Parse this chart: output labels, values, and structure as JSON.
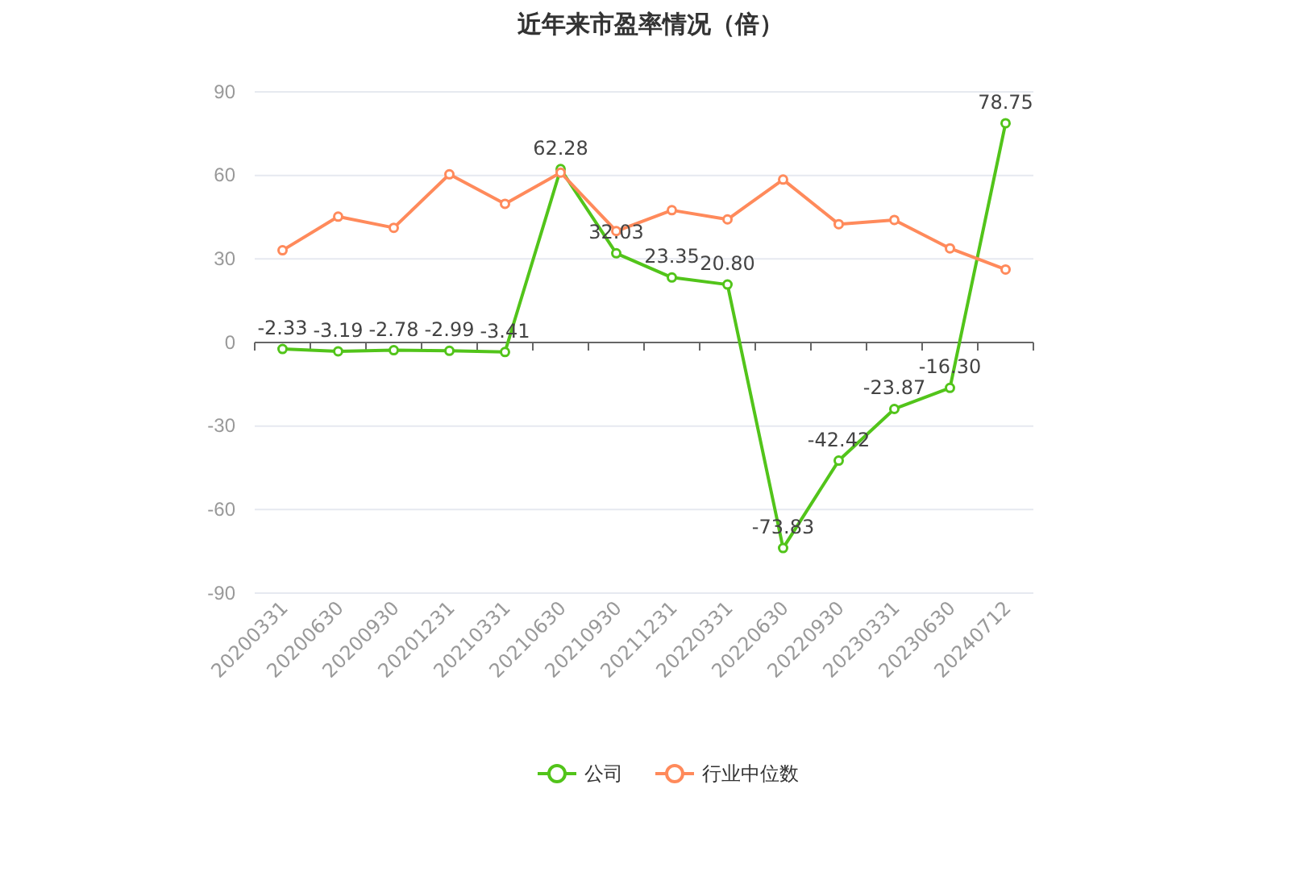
{
  "chart_data": {
    "type": "line",
    "title": "近年来市盈率情况（倍）",
    "categories": [
      "20200331",
      "20200630",
      "20200930",
      "20201231",
      "20210331",
      "20210630",
      "20210930",
      "20211231",
      "20220331",
      "20220630",
      "20220930",
      "20230331",
      "20230630",
      "20240712"
    ],
    "series": [
      {
        "name": "公司",
        "color": "#52c41a",
        "values": [
          -2.33,
          -3.19,
          -2.78,
          -2.99,
          -3.41,
          62.28,
          32.03,
          23.35,
          20.8,
          -73.83,
          -42.42,
          -23.87,
          -16.3,
          78.75
        ],
        "value_labels": [
          "-2.33",
          "-3.19",
          "-2.78",
          "-2.99",
          "-3.41",
          "62.28",
          "32.03",
          "23.35",
          "20.80",
          "-73.83",
          "-42.42",
          "-23.87",
          "-16.30",
          "78.75"
        ]
      },
      {
        "name": "行业中位数",
        "color": "#ff8a5b",
        "values": [
          33.1,
          45.2,
          41.2,
          60.4,
          49.8,
          61.0,
          40.0,
          47.5,
          44.2,
          58.5,
          42.5,
          44.0,
          33.8,
          26.2
        ]
      }
    ],
    "ylim": [
      -90,
      90
    ],
    "yticks": [
      -90,
      -60,
      -30,
      0,
      30,
      60,
      90
    ],
    "grid": "y",
    "legend": "bottom",
    "marker": "circle",
    "line_style": "solid"
  }
}
